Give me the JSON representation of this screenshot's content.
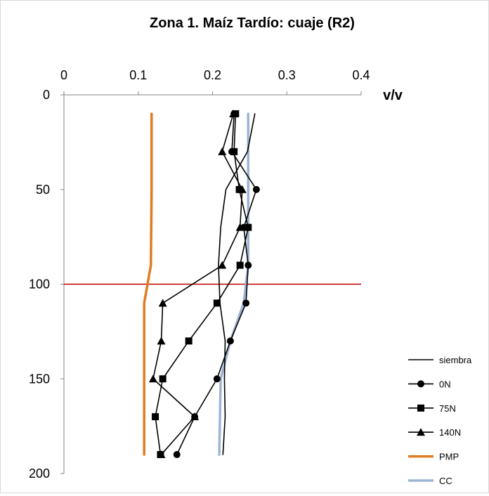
{
  "chart_data": {
    "type": "line",
    "title": "Zona 1. Maíz Tardío: cuaje (R2)",
    "xlabel": "v/v",
    "ylabel": "",
    "xlim": [
      0,
      0.4
    ],
    "ylim": [
      0,
      200
    ],
    "y_reversed": true,
    "x_axis_position": "top",
    "x_ticks": [
      "0",
      "0.1",
      "0.2",
      "0.3",
      "0.4"
    ],
    "y_ticks": [
      "0",
      "50",
      "100",
      "150",
      "200"
    ],
    "x_tick_values": [
      0,
      0.1,
      0.2,
      0.3,
      0.4
    ],
    "y_tick_values": [
      0,
      50,
      100,
      150,
      200
    ],
    "grid": false,
    "legend_position": "right",
    "reference_lines": [
      {
        "orientation": "horizontal",
        "value": 100,
        "color": "#c00000"
      }
    ],
    "series": [
      {
        "name": "siembra",
        "marker": "none",
        "color": "#000000",
        "points": [
          [
            0.257,
            10
          ],
          [
            0.247,
            30
          ],
          [
            0.218,
            50
          ],
          [
            0.211,
            70
          ],
          [
            0.208,
            90
          ],
          [
            0.21,
            110
          ],
          [
            0.217,
            130
          ],
          [
            0.216,
            150
          ],
          [
            0.217,
            170
          ],
          [
            0.214,
            190
          ]
        ]
      },
      {
        "name": "0N",
        "marker": "circle",
        "color": "#000000",
        "points": [
          [
            0.229,
            10
          ],
          [
            0.226,
            30
          ],
          [
            0.259,
            50
          ],
          [
            0.242,
            70
          ],
          [
            0.248,
            90
          ],
          [
            0.245,
            110
          ],
          [
            0.224,
            130
          ],
          [
            0.206,
            150
          ],
          [
            0.176,
            170
          ],
          [
            0.152,
            190
          ]
        ]
      },
      {
        "name": "75N",
        "marker": "square",
        "color": "#000000",
        "points": [
          [
            0.231,
            10
          ],
          [
            0.229,
            30
          ],
          [
            0.236,
            50
          ],
          [
            0.248,
            70
          ],
          [
            0.237,
            90
          ],
          [
            0.206,
            110
          ],
          [
            0.168,
            130
          ],
          [
            0.133,
            150
          ],
          [
            0.123,
            170
          ],
          [
            0.13,
            190
          ]
        ]
      },
      {
        "name": "140N",
        "marker": "triangle",
        "color": "#000000",
        "points": [
          [
            0.228,
            10
          ],
          [
            0.213,
            30
          ],
          [
            0.24,
            50
          ],
          [
            0.237,
            70
          ],
          [
            0.213,
            90
          ],
          [
            0.133,
            110
          ],
          [
            0.131,
            130
          ],
          [
            0.12,
            150
          ],
          [
            0.176,
            170
          ],
          [
            0.131,
            190
          ]
        ]
      },
      {
        "name": "PMP",
        "marker": "none",
        "color": "#e07b22",
        "points": [
          [
            0.118,
            10
          ],
          [
            0.118,
            50
          ],
          [
            0.117,
            90
          ],
          [
            0.108,
            110
          ],
          [
            0.108,
            190
          ]
        ]
      },
      {
        "name": "CC",
        "marker": "none",
        "color": "#9db4d4",
        "points": [
          [
            0.248,
            10
          ],
          [
            0.248,
            90
          ],
          [
            0.242,
            110
          ],
          [
            0.224,
            130
          ],
          [
            0.211,
            150
          ],
          [
            0.209,
            190
          ]
        ]
      }
    ]
  }
}
